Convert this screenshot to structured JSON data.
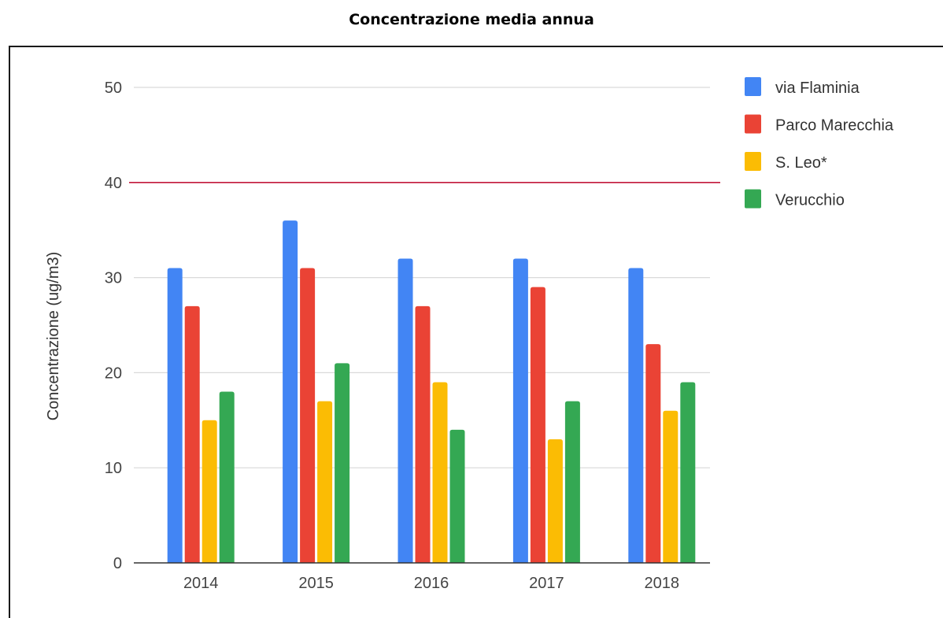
{
  "page": {
    "title": "Concentrazione media annua"
  },
  "chart_data": {
    "type": "bar",
    "title": "Concentrazione media annua",
    "xlabel": "",
    "ylabel": "Concentrazione (ug/m3)",
    "ylim": [
      0,
      50
    ],
    "yticks": [
      0,
      10,
      20,
      30,
      40,
      50
    ],
    "grid": true,
    "legend_position": "right",
    "categories": [
      "2014",
      "2015",
      "2016",
      "2017",
      "2018"
    ],
    "series": [
      {
        "name": "via Flaminia",
        "color": "#4285f4",
        "values": [
          31,
          36,
          32,
          32,
          31
        ]
      },
      {
        "name": "Parco Marecchia",
        "color": "#ea4335",
        "values": [
          27,
          31,
          27,
          29,
          23
        ]
      },
      {
        "name": "S. Leo*",
        "color": "#fbbc04",
        "values": [
          15,
          17,
          19,
          13,
          16
        ]
      },
      {
        "name": "Verucchio",
        "color": "#34a853",
        "values": [
          18,
          21,
          14,
          17,
          19
        ]
      }
    ],
    "reference_line": {
      "value": 40,
      "color": "#c2183b"
    }
  }
}
